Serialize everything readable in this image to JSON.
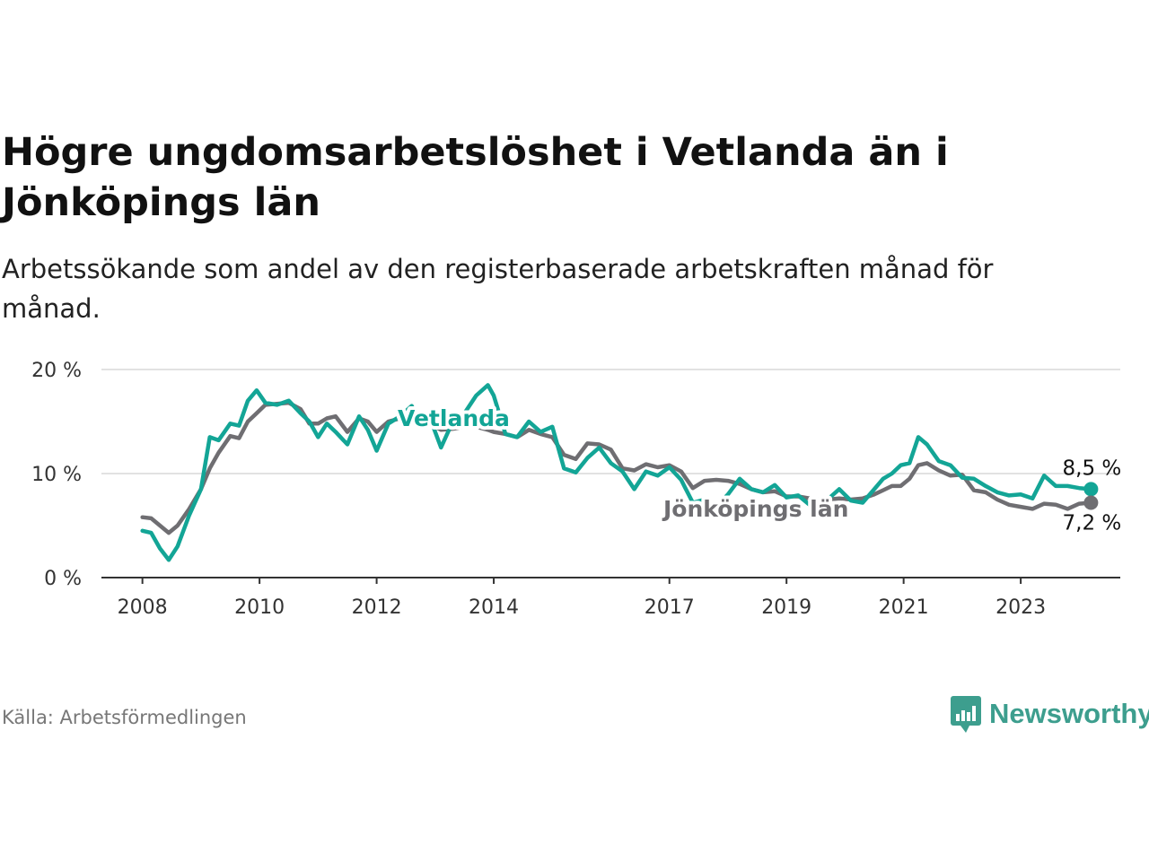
{
  "title": "Högre ungdomsarbetslöshet i Vetlanda än i Jönköpings län",
  "subtitle": "Arbetssökande som andel av den registerbaserade arbetskraften månad för månad.",
  "source": "Källa: Arbetsförmedlingen",
  "brand": "Newsworthy",
  "colors": {
    "vetlanda": "#13a596",
    "lan": "#6f6e72",
    "logo": "#3d9e8e"
  },
  "chart_data": {
    "type": "line",
    "title": "Högre ungdomsarbetslöshet i Vetlanda än i Jönköpings län",
    "xlabel": "",
    "ylabel": "",
    "ylim": [
      0,
      20
    ],
    "xlim": [
      2007.3,
      2024.7
    ],
    "y_ticks": [
      "0 %",
      "10 %",
      "20 %"
    ],
    "x_ticks": [
      "2008",
      "2010",
      "2012",
      "2014",
      "2017",
      "2019",
      "2021",
      "2023"
    ],
    "grid": true,
    "series": [
      {
        "name": "Vetlanda",
        "color": "#13a596",
        "end_label": "8,5 %",
        "points": [
          [
            2008.0,
            4.5
          ],
          [
            2008.15,
            4.3
          ],
          [
            2008.3,
            2.8
          ],
          [
            2008.45,
            1.7
          ],
          [
            2008.6,
            3.0
          ],
          [
            2008.8,
            6.0
          ],
          [
            2009.0,
            8.5
          ],
          [
            2009.15,
            13.5
          ],
          [
            2009.3,
            13.2
          ],
          [
            2009.5,
            14.8
          ],
          [
            2009.65,
            14.6
          ],
          [
            2009.8,
            17.0
          ],
          [
            2009.95,
            18.0
          ],
          [
            2010.1,
            16.8
          ],
          [
            2010.3,
            16.6
          ],
          [
            2010.5,
            17.0
          ],
          [
            2010.7,
            15.8
          ],
          [
            2010.85,
            15.0
          ],
          [
            2011.0,
            13.5
          ],
          [
            2011.15,
            14.8
          ],
          [
            2011.3,
            14.0
          ],
          [
            2011.5,
            12.8
          ],
          [
            2011.7,
            15.5
          ],
          [
            2011.85,
            14.2
          ],
          [
            2012.0,
            12.2
          ],
          [
            2012.2,
            14.8
          ],
          [
            2012.4,
            15.5
          ],
          [
            2012.6,
            16.5
          ],
          [
            2012.75,
            14.8
          ],
          [
            2012.9,
            15.5
          ],
          [
            2013.1,
            12.5
          ],
          [
            2013.3,
            15.0
          ],
          [
            2013.5,
            15.8
          ],
          [
            2013.7,
            17.5
          ],
          [
            2013.9,
            18.5
          ],
          [
            2014.0,
            17.5
          ],
          [
            2014.2,
            13.8
          ],
          [
            2014.4,
            13.5
          ],
          [
            2014.6,
            15.0
          ],
          [
            2014.8,
            14.0
          ],
          [
            2015.0,
            14.5
          ],
          [
            2015.2,
            10.5
          ],
          [
            2015.4,
            10.1
          ],
          [
            2015.6,
            11.5
          ],
          [
            2015.8,
            12.5
          ],
          [
            2016.0,
            11.0
          ],
          [
            2016.2,
            10.2
          ],
          [
            2016.4,
            8.5
          ],
          [
            2016.6,
            10.2
          ],
          [
            2016.8,
            9.8
          ],
          [
            2017.0,
            10.6
          ],
          [
            2017.2,
            9.4
          ],
          [
            2017.4,
            7.2
          ],
          [
            2017.6,
            7.5
          ],
          [
            2017.8,
            6.8
          ],
          [
            2018.0,
            8.0
          ],
          [
            2018.2,
            9.5
          ],
          [
            2018.4,
            8.5
          ],
          [
            2018.6,
            8.2
          ],
          [
            2018.8,
            8.9
          ],
          [
            2019.0,
            7.7
          ],
          [
            2019.2,
            7.9
          ],
          [
            2019.5,
            6.5
          ],
          [
            2019.7,
            7.5
          ],
          [
            2019.9,
            8.5
          ],
          [
            2020.1,
            7.4
          ],
          [
            2020.3,
            7.2
          ],
          [
            2020.5,
            8.5
          ],
          [
            2020.65,
            9.5
          ],
          [
            2020.8,
            10.0
          ],
          [
            2020.95,
            10.8
          ],
          [
            2021.1,
            11.0
          ],
          [
            2021.25,
            13.5
          ],
          [
            2021.4,
            12.8
          ],
          [
            2021.6,
            11.2
          ],
          [
            2021.8,
            10.8
          ],
          [
            2022.0,
            9.6
          ],
          [
            2022.2,
            9.5
          ],
          [
            2022.4,
            8.8
          ],
          [
            2022.6,
            8.2
          ],
          [
            2022.8,
            7.9
          ],
          [
            2023.0,
            8.0
          ],
          [
            2023.2,
            7.6
          ],
          [
            2023.4,
            9.8
          ],
          [
            2023.6,
            8.8
          ],
          [
            2023.8,
            8.8
          ],
          [
            2024.0,
            8.6
          ],
          [
            2024.2,
            8.5
          ]
        ]
      },
      {
        "name": "Jönköpings län",
        "color": "#6f6e72",
        "end_label": "7,2 %",
        "points": [
          [
            2008.0,
            5.8
          ],
          [
            2008.15,
            5.7
          ],
          [
            2008.3,
            5.0
          ],
          [
            2008.45,
            4.3
          ],
          [
            2008.6,
            5.0
          ],
          [
            2008.8,
            6.6
          ],
          [
            2009.0,
            8.5
          ],
          [
            2009.15,
            10.5
          ],
          [
            2009.3,
            12.0
          ],
          [
            2009.5,
            13.6
          ],
          [
            2009.65,
            13.4
          ],
          [
            2009.8,
            15.0
          ],
          [
            2009.95,
            15.8
          ],
          [
            2010.1,
            16.6
          ],
          [
            2010.3,
            16.7
          ],
          [
            2010.5,
            16.8
          ],
          [
            2010.7,
            16.2
          ],
          [
            2010.85,
            14.8
          ],
          [
            2011.0,
            14.8
          ],
          [
            2011.15,
            15.3
          ],
          [
            2011.3,
            15.5
          ],
          [
            2011.5,
            14.0
          ],
          [
            2011.7,
            15.3
          ],
          [
            2011.85,
            15.0
          ],
          [
            2012.0,
            14.0
          ],
          [
            2012.2,
            15.0
          ],
          [
            2012.4,
            15.3
          ],
          [
            2012.6,
            15.5
          ],
          [
            2012.75,
            15.0
          ],
          [
            2012.9,
            14.8
          ],
          [
            2013.1,
            14.2
          ],
          [
            2013.3,
            14.3
          ],
          [
            2013.5,
            14.5
          ],
          [
            2013.7,
            14.5
          ],
          [
            2013.9,
            14.2
          ],
          [
            2014.0,
            14.0
          ],
          [
            2014.2,
            13.8
          ],
          [
            2014.4,
            13.5
          ],
          [
            2014.6,
            14.2
          ],
          [
            2014.8,
            13.8
          ],
          [
            2015.0,
            13.5
          ],
          [
            2015.2,
            11.8
          ],
          [
            2015.4,
            11.4
          ],
          [
            2015.6,
            12.9
          ],
          [
            2015.8,
            12.8
          ],
          [
            2016.0,
            12.3
          ],
          [
            2016.2,
            10.5
          ],
          [
            2016.4,
            10.3
          ],
          [
            2016.6,
            10.9
          ],
          [
            2016.8,
            10.6
          ],
          [
            2017.0,
            10.8
          ],
          [
            2017.2,
            10.2
          ],
          [
            2017.4,
            8.6
          ],
          [
            2017.6,
            9.3
          ],
          [
            2017.8,
            9.4
          ],
          [
            2018.0,
            9.3
          ],
          [
            2018.2,
            9.0
          ],
          [
            2018.4,
            8.5
          ],
          [
            2018.6,
            8.2
          ],
          [
            2018.8,
            8.3
          ],
          [
            2019.0,
            7.8
          ],
          [
            2019.2,
            7.8
          ],
          [
            2019.5,
            7.5
          ],
          [
            2019.7,
            7.5
          ],
          [
            2019.9,
            7.6
          ],
          [
            2020.1,
            7.5
          ],
          [
            2020.3,
            7.6
          ],
          [
            2020.5,
            8.0
          ],
          [
            2020.65,
            8.4
          ],
          [
            2020.8,
            8.8
          ],
          [
            2020.95,
            8.8
          ],
          [
            2021.1,
            9.5
          ],
          [
            2021.25,
            10.8
          ],
          [
            2021.4,
            11.0
          ],
          [
            2021.6,
            10.3
          ],
          [
            2021.8,
            9.8
          ],
          [
            2022.0,
            9.9
          ],
          [
            2022.2,
            8.4
          ],
          [
            2022.4,
            8.2
          ],
          [
            2022.6,
            7.5
          ],
          [
            2022.8,
            7.0
          ],
          [
            2023.0,
            6.8
          ],
          [
            2023.2,
            6.6
          ],
          [
            2023.4,
            7.1
          ],
          [
            2023.6,
            7.0
          ],
          [
            2023.8,
            6.6
          ],
          [
            2024.0,
            7.1
          ],
          [
            2024.2,
            7.2
          ]
        ]
      }
    ]
  }
}
